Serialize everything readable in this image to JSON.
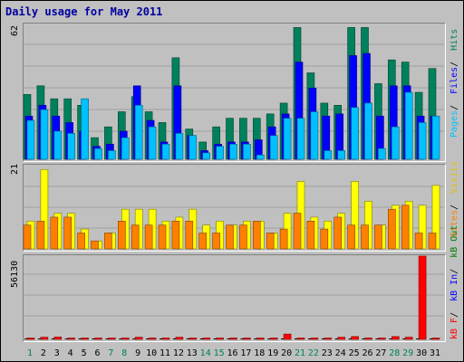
{
  "title": "Daily usage for May 2011",
  "colors": {
    "hits": "#00805C",
    "files": "#0000FF",
    "pages": "#00C0FF",
    "visits": "#FFFF00",
    "sites": "#FF8000",
    "kbin": "#0000FF",
    "kbout": "#008000",
    "kbf": "#FF0000",
    "weekday_label": "#000000",
    "weekend_label": "#00805C"
  },
  "legends": {
    "top": [
      {
        "text": "Hits",
        "color": "#00805C"
      },
      {
        "text": "Files",
        "color": "#0000FF"
      },
      {
        "text": "Pages",
        "color": "#00C0FF"
      }
    ],
    "middle": [
      {
        "text": "Visits",
        "color": "#E0C000"
      },
      {
        "text": "Sites",
        "color": "#FF8000"
      }
    ],
    "bottom": [
      {
        "text": "kB Out",
        "color": "#008000"
      },
      {
        "text": "kB In",
        "color": "#0000FF"
      },
      {
        "text": "kB F",
        "color": "#FF0000"
      }
    ]
  },
  "chart_data": [
    {
      "type": "bar",
      "panel": "hits-files-pages",
      "ymax_label": "62",
      "ylim": [
        0,
        62
      ],
      "categories": [
        "1",
        "2",
        "3",
        "4",
        "5",
        "6",
        "7",
        "8",
        "9",
        "10",
        "11",
        "12",
        "13",
        "14",
        "15",
        "16",
        "17",
        "18",
        "19",
        "20",
        "21",
        "22",
        "23",
        "24",
        "25",
        "26",
        "27",
        "28",
        "29",
        "30",
        "31"
      ],
      "series": [
        {
          "name": "Hits",
          "values": [
            30,
            34,
            28,
            28,
            25,
            10,
            15,
            22,
            29,
            22,
            17,
            47,
            14,
            8,
            15,
            19,
            19,
            19,
            21,
            26,
            61,
            40,
            26,
            25,
            61,
            61,
            35,
            46,
            45,
            31,
            42
          ]
        },
        {
          "name": "Files",
          "values": [
            20,
            25,
            20,
            17,
            13,
            6,
            7,
            13,
            34,
            18,
            8,
            34,
            11,
            4,
            7,
            8,
            8,
            9,
            15,
            21,
            45,
            33,
            20,
            21,
            48,
            49,
            20,
            34,
            34,
            20,
            20
          ]
        },
        {
          "name": "Pages",
          "values": [
            18,
            23,
            13,
            12,
            28,
            5,
            4,
            10,
            25,
            15,
            7,
            12,
            11,
            3,
            6,
            7,
            7,
            2,
            11,
            19,
            19,
            22,
            4,
            4,
            24,
            26,
            5,
            15,
            31,
            17,
            20
          ]
        }
      ]
    },
    {
      "type": "bar",
      "panel": "visits-sites",
      "ymax_label": "21",
      "ylim": [
        0,
        21
      ],
      "categories": [
        "1",
        "2",
        "3",
        "4",
        "5",
        "6",
        "7",
        "8",
        "9",
        "10",
        "11",
        "12",
        "13",
        "14",
        "15",
        "16",
        "17",
        "18",
        "19",
        "20",
        "21",
        "22",
        "23",
        "24",
        "25",
        "26",
        "27",
        "28",
        "29",
        "30",
        "31"
      ],
      "series": [
        {
          "name": "Visits",
          "values": [
            7,
            20,
            9,
            9,
            5,
            2,
            4,
            10,
            10,
            10,
            7,
            8,
            10,
            6,
            7,
            6,
            7,
            7,
            4,
            9,
            17,
            8,
            7,
            9,
            17,
            12,
            6,
            11,
            12,
            11,
            16
          ]
        },
        {
          "name": "Sites",
          "values": [
            6,
            7,
            8,
            8,
            4,
            2,
            4,
            7,
            6,
            6,
            6,
            7,
            7,
            4,
            4,
            6,
            6,
            7,
            4,
            5,
            9,
            7,
            5,
            8,
            6,
            6,
            6,
            10,
            11,
            4,
            4
          ]
        }
      ]
    },
    {
      "type": "bar",
      "panel": "kbytes",
      "ymax_label": "56130",
      "ylim": [
        0,
        56130
      ],
      "categories": [
        "1",
        "2",
        "3",
        "4",
        "5",
        "6",
        "7",
        "8",
        "9",
        "10",
        "11",
        "12",
        "13",
        "14",
        "15",
        "16",
        "17",
        "18",
        "19",
        "20",
        "21",
        "22",
        "23",
        "24",
        "25",
        "26",
        "27",
        "28",
        "29",
        "30",
        "31"
      ],
      "series": [
        {
          "name": "kB F",
          "values": [
            350,
            1450,
            1550,
            650,
            650,
            550,
            650,
            900,
            1450,
            650,
            650,
            1450,
            650,
            650,
            650,
            650,
            650,
            650,
            900,
            3600,
            650,
            650,
            650,
            1450,
            1900,
            650,
            650,
            1900,
            1450,
            56130,
            650
          ]
        },
        {
          "name": "kB In",
          "values": [
            0,
            0,
            0,
            0,
            0,
            0,
            0,
            0,
            0,
            0,
            0,
            0,
            0,
            0,
            0,
            0,
            0,
            0,
            0,
            0,
            0,
            0,
            0,
            0,
            0,
            0,
            0,
            0,
            0,
            0,
            0
          ]
        },
        {
          "name": "kB Out",
          "values": [
            0,
            0,
            0,
            0,
            0,
            0,
            0,
            0,
            0,
            0,
            0,
            0,
            0,
            0,
            0,
            0,
            0,
            0,
            0,
            0,
            0,
            0,
            0,
            0,
            0,
            0,
            0,
            0,
            0,
            0,
            0
          ]
        }
      ]
    }
  ],
  "weekend_days": [
    "1",
    "7",
    "8",
    "14",
    "15",
    "21",
    "22",
    "28",
    "29"
  ]
}
